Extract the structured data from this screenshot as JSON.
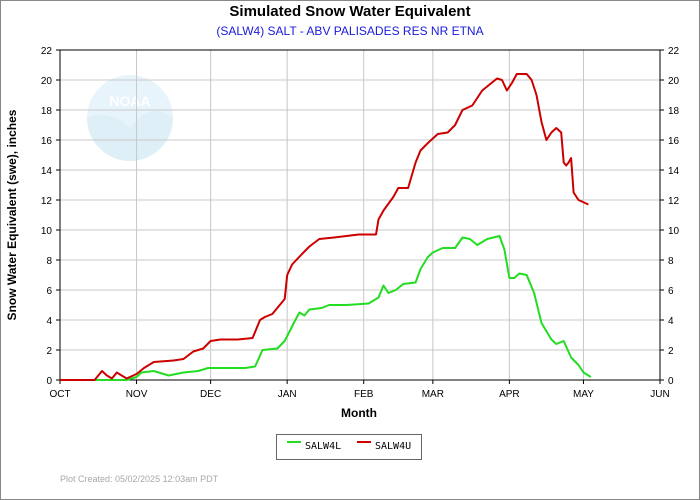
{
  "title": "Simulated Snow Water Equivalent",
  "subtitle": "(SALW4) SALT - ABV PALISADES RES NR ETNA",
  "footer": "Plot Created: 05/02/2025 12:03am PDT",
  "watermark": "NOAA",
  "colors": {
    "grid": "#c8c8c8",
    "title_sub": "#1a1adc"
  },
  "chart_data": {
    "type": "line",
    "xlabel": "Month",
    "ylabel": "Snow Water Equivalent (swe),  inches",
    "x_ticks": [
      "OCT",
      "NOV",
      "DEC",
      "JAN",
      "FEB",
      "MAR",
      "APR",
      "MAY",
      "JUN"
    ],
    "xlim": [
      "2024-10-01",
      "2025-06-01"
    ],
    "ylim": [
      0,
      22
    ],
    "y_ticks": [
      0,
      2,
      4,
      6,
      8,
      10,
      12,
      14,
      16,
      18,
      20,
      22
    ],
    "grid": true,
    "legend_position": "bottom-center",
    "series": [
      {
        "name": "SALW4L",
        "color": "#22dd22",
        "points": [
          [
            "2024-10-01",
            0
          ],
          [
            "2024-10-28",
            0
          ],
          [
            "2024-10-30",
            0.1
          ],
          [
            "2024-11-01",
            0.2
          ],
          [
            "2024-11-03",
            0.5
          ],
          [
            "2024-11-08",
            0.6
          ],
          [
            "2024-11-14",
            0.3
          ],
          [
            "2024-11-20",
            0.5
          ],
          [
            "2024-11-26",
            0.6
          ],
          [
            "2024-11-30",
            0.8
          ],
          [
            "2024-12-08",
            0.8
          ],
          [
            "2024-12-15",
            0.8
          ],
          [
            "2024-12-19",
            0.9
          ],
          [
            "2024-12-22",
            2.0
          ],
          [
            "2024-12-28",
            2.1
          ],
          [
            "2024-12-31",
            2.6
          ],
          [
            "2025-01-04",
            3.9
          ],
          [
            "2025-01-06",
            4.5
          ],
          [
            "2025-01-08",
            4.3
          ],
          [
            "2025-01-10",
            4.7
          ],
          [
            "2025-01-15",
            4.8
          ],
          [
            "2025-01-18",
            5.0
          ],
          [
            "2025-01-25",
            5.0
          ],
          [
            "2025-02-03",
            5.1
          ],
          [
            "2025-02-07",
            5.5
          ],
          [
            "2025-02-09",
            6.3
          ],
          [
            "2025-02-11",
            5.8
          ],
          [
            "2025-02-14",
            6.0
          ],
          [
            "2025-02-17",
            6.4
          ],
          [
            "2025-02-22",
            6.5
          ],
          [
            "2025-02-24",
            7.4
          ],
          [
            "2025-02-27",
            8.2
          ],
          [
            "2025-03-01",
            8.5
          ],
          [
            "2025-03-05",
            8.8
          ],
          [
            "2025-03-08",
            8.8
          ],
          [
            "2025-03-10",
            8.8
          ],
          [
            "2025-03-13",
            9.5
          ],
          [
            "2025-03-16",
            9.4
          ],
          [
            "2025-03-19",
            9.0
          ],
          [
            "2025-03-23",
            9.4
          ],
          [
            "2025-03-28",
            9.6
          ],
          [
            "2025-03-30",
            8.7
          ],
          [
            "2025-04-01",
            6.8
          ],
          [
            "2025-04-03",
            6.8
          ],
          [
            "2025-04-05",
            7.1
          ],
          [
            "2025-04-08",
            7.0
          ],
          [
            "2025-04-11",
            5.8
          ],
          [
            "2025-04-14",
            3.8
          ],
          [
            "2025-04-18",
            2.7
          ],
          [
            "2025-04-20",
            2.4
          ],
          [
            "2025-04-23",
            2.6
          ],
          [
            "2025-04-26",
            1.5
          ],
          [
            "2025-04-29",
            1.0
          ],
          [
            "2025-05-01",
            0.5
          ],
          [
            "2025-05-03",
            0.3
          ],
          [
            "2025-05-04",
            0.2
          ]
        ]
      },
      {
        "name": "SALW4U",
        "color": "#cc0000",
        "points": [
          [
            "2024-10-01",
            0
          ],
          [
            "2024-10-15",
            0
          ],
          [
            "2024-10-18",
            0.6
          ],
          [
            "2024-10-20",
            0.3
          ],
          [
            "2024-10-22",
            0.1
          ],
          [
            "2024-10-24",
            0.5
          ],
          [
            "2024-10-26",
            0.3
          ],
          [
            "2024-10-28",
            0.1
          ],
          [
            "2024-11-01",
            0.4
          ],
          [
            "2024-11-04",
            0.8
          ],
          [
            "2024-11-08",
            1.2
          ],
          [
            "2024-11-16",
            1.3
          ],
          [
            "2024-11-20",
            1.4
          ],
          [
            "2024-11-24",
            1.9
          ],
          [
            "2024-11-28",
            2.1
          ],
          [
            "2024-12-01",
            2.6
          ],
          [
            "2024-12-05",
            2.7
          ],
          [
            "2024-12-12",
            2.7
          ],
          [
            "2024-12-18",
            2.8
          ],
          [
            "2024-12-21",
            4.0
          ],
          [
            "2024-12-23",
            4.2
          ],
          [
            "2024-12-26",
            4.4
          ],
          [
            "2024-12-31",
            5.4
          ],
          [
            "2025-01-01",
            7.0
          ],
          [
            "2025-01-03",
            7.7
          ],
          [
            "2025-01-07",
            8.4
          ],
          [
            "2025-01-10",
            8.9
          ],
          [
            "2025-01-14",
            9.4
          ],
          [
            "2025-01-20",
            9.5
          ],
          [
            "2025-01-25",
            9.6
          ],
          [
            "2025-01-30",
            9.7
          ],
          [
            "2025-02-06",
            9.7
          ],
          [
            "2025-02-07",
            10.7
          ],
          [
            "2025-02-09",
            11.3
          ],
          [
            "2025-02-13",
            12.2
          ],
          [
            "2025-02-15",
            12.8
          ],
          [
            "2025-02-19",
            12.8
          ],
          [
            "2025-02-22",
            14.5
          ],
          [
            "2025-02-24",
            15.3
          ],
          [
            "2025-02-27",
            15.8
          ],
          [
            "2025-03-03",
            16.4
          ],
          [
            "2025-03-07",
            16.5
          ],
          [
            "2025-03-10",
            17.0
          ],
          [
            "2025-03-13",
            18.0
          ],
          [
            "2025-03-17",
            18.3
          ],
          [
            "2025-03-21",
            19.3
          ],
          [
            "2025-03-24",
            19.7
          ],
          [
            "2025-03-27",
            20.1
          ],
          [
            "2025-03-29",
            20.0
          ],
          [
            "2025-03-31",
            19.3
          ],
          [
            "2025-04-02",
            19.8
          ],
          [
            "2025-04-04",
            20.4
          ],
          [
            "2025-04-08",
            20.4
          ],
          [
            "2025-04-10",
            20.0
          ],
          [
            "2025-04-12",
            19.0
          ],
          [
            "2025-04-14",
            17.2
          ],
          [
            "2025-04-16",
            16.0
          ],
          [
            "2025-04-18",
            16.5
          ],
          [
            "2025-04-20",
            16.8
          ],
          [
            "2025-04-22",
            16.5
          ],
          [
            "2025-04-23",
            14.5
          ],
          [
            "2025-04-24",
            14.3
          ],
          [
            "2025-04-25",
            14.5
          ],
          [
            "2025-04-26",
            14.8
          ],
          [
            "2025-04-27",
            12.5
          ],
          [
            "2025-04-29",
            12.0
          ],
          [
            "2025-05-03",
            11.7
          ]
        ]
      }
    ]
  }
}
